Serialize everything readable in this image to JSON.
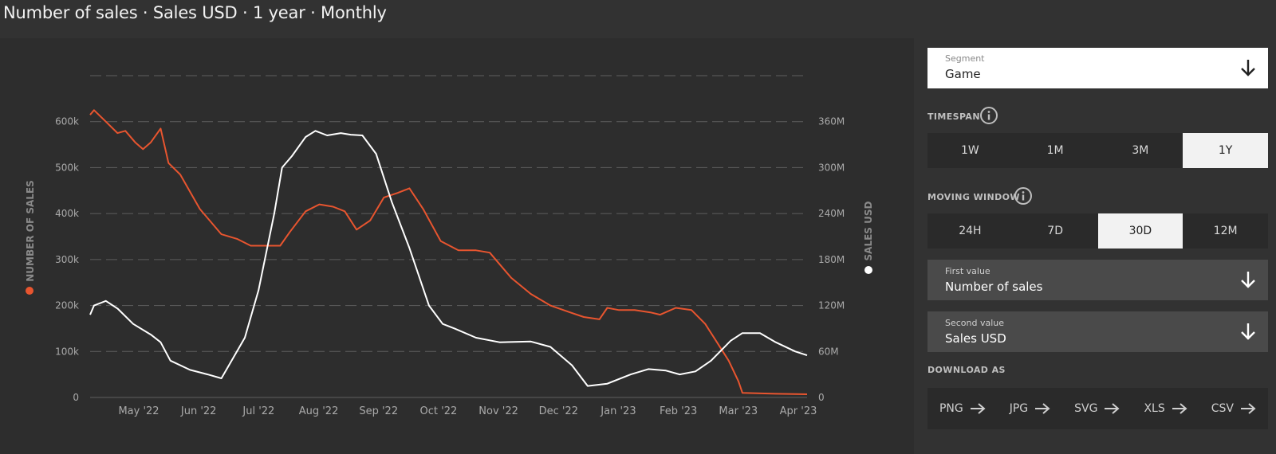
{
  "title": "Number of sales · Sales USD · 1 year · Monthly",
  "controls": {
    "segment": {
      "label": "Segment",
      "value": "Game"
    },
    "timespan": {
      "label": "TIMESPAN",
      "options": [
        "1W",
        "1M",
        "3M",
        "1Y"
      ],
      "selected": "1Y"
    },
    "moving_window": {
      "label": "MOVING WINDOW",
      "options": [
        "24H",
        "7D",
        "30D",
        "12M"
      ],
      "selected": "30D"
    },
    "first_value": {
      "label": "First value",
      "value": "Number of sales"
    },
    "second_value": {
      "label": "Second value",
      "value": "Sales USD"
    },
    "download": {
      "label": "DOWNLOAD AS",
      "formats": [
        "PNG",
        "JPG",
        "SVG",
        "XLS",
        "CSV"
      ]
    }
  },
  "colors": {
    "sales_count": "#e8552f",
    "sales_usd": "#ffffff",
    "background": "#323232",
    "grid": "#5e5e5e"
  },
  "chart_data": {
    "type": "line",
    "x_labels": [
      "May '22",
      "Jun '22",
      "Jul '22",
      "Aug '22",
      "Sep '22",
      "Oct '22",
      "Nov '22",
      "Dec '22",
      "Jan '23",
      "Feb '23",
      "Mar '23",
      "Apr '23"
    ],
    "x_range": [
      "2022-04-04",
      "2023-04-05"
    ],
    "y_left": {
      "label": "NUMBER OF SALES",
      "ticks": [
        "0",
        "100k",
        "200k",
        "300k",
        "400k",
        "500k",
        "600k"
      ],
      "range": [
        0,
        700000
      ]
    },
    "y_right": {
      "label": "SALES USD",
      "ticks": [
        "0",
        "60M",
        "120M",
        "180M",
        "240M",
        "300M",
        "360M"
      ],
      "range": [
        0,
        420000000
      ]
    },
    "grid": true,
    "series": [
      {
        "name": "NUMBER OF SALES",
        "axis": "left",
        "color": "#e8552f",
        "points": [
          [
            "2022-04-04",
            615000
          ],
          [
            "2022-04-06",
            625000
          ],
          [
            "2022-04-12",
            600000
          ],
          [
            "2022-04-18",
            575000
          ],
          [
            "2022-04-22",
            580000
          ],
          [
            "2022-04-27",
            555000
          ],
          [
            "2022-05-01",
            540000
          ],
          [
            "2022-05-05",
            555000
          ],
          [
            "2022-05-10",
            585000
          ],
          [
            "2022-05-14",
            510000
          ],
          [
            "2022-05-20",
            485000
          ],
          [
            "2022-05-30",
            410000
          ],
          [
            "2022-06-10",
            355000
          ],
          [
            "2022-06-18",
            345000
          ],
          [
            "2022-06-25",
            330000
          ],
          [
            "2022-07-03",
            330000
          ],
          [
            "2022-07-10",
            330000
          ],
          [
            "2022-07-15",
            360000
          ],
          [
            "2022-07-23",
            405000
          ],
          [
            "2022-07-30",
            420000
          ],
          [
            "2022-08-06",
            415000
          ],
          [
            "2022-08-12",
            405000
          ],
          [
            "2022-08-18",
            365000
          ],
          [
            "2022-08-25",
            385000
          ],
          [
            "2022-09-01",
            435000
          ],
          [
            "2022-09-08",
            445000
          ],
          [
            "2022-09-14",
            455000
          ],
          [
            "2022-09-21",
            410000
          ],
          [
            "2022-09-30",
            340000
          ],
          [
            "2022-10-09",
            320000
          ],
          [
            "2022-10-18",
            320000
          ],
          [
            "2022-10-25",
            315000
          ],
          [
            "2022-11-05",
            260000
          ],
          [
            "2022-11-15",
            225000
          ],
          [
            "2022-11-25",
            200000
          ],
          [
            "2022-12-05",
            185000
          ],
          [
            "2022-12-12",
            175000
          ],
          [
            "2022-12-20",
            170000
          ],
          [
            "2022-12-24",
            195000
          ],
          [
            "2022-12-30",
            190000
          ],
          [
            "2023-01-07",
            190000
          ],
          [
            "2023-01-15",
            185000
          ],
          [
            "2023-01-20",
            180000
          ],
          [
            "2023-01-28",
            195000
          ],
          [
            "2023-02-05",
            190000
          ],
          [
            "2023-02-12",
            160000
          ],
          [
            "2023-02-18",
            120000
          ],
          [
            "2023-02-24",
            80000
          ],
          [
            "2023-03-01",
            35000
          ],
          [
            "2023-03-03",
            10000
          ],
          [
            "2023-03-20",
            8000
          ],
          [
            "2023-04-05",
            7000
          ]
        ]
      },
      {
        "name": "SALES USD",
        "axis": "right",
        "color": "#ffffff",
        "points": [
          [
            "2022-04-04",
            108000000
          ],
          [
            "2022-04-06",
            120000000
          ],
          [
            "2022-04-12",
            126000000
          ],
          [
            "2022-04-18",
            116000000
          ],
          [
            "2022-04-26",
            96000000
          ],
          [
            "2022-05-05",
            82000000
          ],
          [
            "2022-05-10",
            72000000
          ],
          [
            "2022-05-15",
            48000000
          ],
          [
            "2022-05-25",
            36000000
          ],
          [
            "2022-06-03",
            30000000
          ],
          [
            "2022-06-10",
            25000000
          ],
          [
            "2022-06-13",
            38000000
          ],
          [
            "2022-06-22",
            78000000
          ],
          [
            "2022-06-29",
            140000000
          ],
          [
            "2022-07-07",
            240000000
          ],
          [
            "2022-07-11",
            300000000
          ],
          [
            "2022-07-16",
            315000000
          ],
          [
            "2022-07-23",
            340000000
          ],
          [
            "2022-07-28",
            348000000
          ],
          [
            "2022-08-03",
            342000000
          ],
          [
            "2022-08-10",
            345000000
          ],
          [
            "2022-08-15",
            343000000
          ],
          [
            "2022-08-21",
            342000000
          ],
          [
            "2022-08-28",
            318000000
          ],
          [
            "2022-09-05",
            255000000
          ],
          [
            "2022-09-14",
            195000000
          ],
          [
            "2022-09-24",
            120000000
          ],
          [
            "2022-10-01",
            96000000
          ],
          [
            "2022-10-07",
            90000000
          ],
          [
            "2022-10-18",
            78000000
          ],
          [
            "2022-10-30",
            72000000
          ],
          [
            "2022-11-15",
            73000000
          ],
          [
            "2022-11-25",
            66000000
          ],
          [
            "2022-12-06",
            42000000
          ],
          [
            "2022-12-14",
            15000000
          ],
          [
            "2022-12-24",
            18000000
          ],
          [
            "2023-01-05",
            30000000
          ],
          [
            "2023-01-14",
            37000000
          ],
          [
            "2023-01-23",
            35000000
          ],
          [
            "2023-01-30",
            30000000
          ],
          [
            "2023-02-07",
            34000000
          ],
          [
            "2023-02-15",
            48000000
          ],
          [
            "2023-02-25",
            74000000
          ],
          [
            "2023-03-03",
            84000000
          ],
          [
            "2023-03-12",
            84000000
          ],
          [
            "2023-03-20",
            72000000
          ],
          [
            "2023-03-30",
            60000000
          ],
          [
            "2023-04-05",
            55000000
          ]
        ]
      }
    ]
  }
}
